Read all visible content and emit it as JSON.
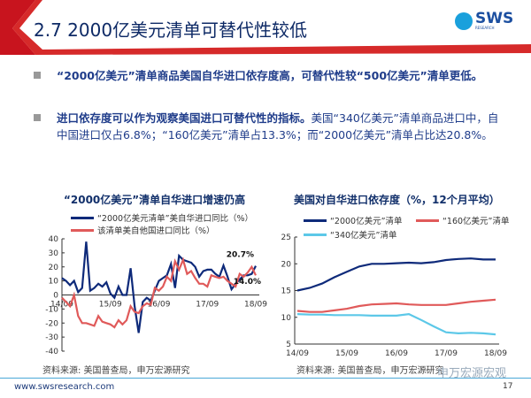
{
  "header": {
    "title": "2.7 2000亿美元清单可替代性较低",
    "logo_text": "SWS",
    "logo_sub": "RESEARCH"
  },
  "bullets": [
    {
      "bold": "“2000亿美元”清单商品美国自华进口依存度高，可替代性较“500亿美元”清单更低。",
      "normal": ""
    },
    {
      "bold": "进口依存度可以作为观察美国进口可替代性的指标。",
      "normal": "美国“340亿美元”清单商品进口中，自中国进口仅占6.8%；“160亿美元”清单占13.3%；而“2000亿美元”清单占比达20.8%。"
    }
  ],
  "footer": {
    "url": "www.swsresearch.com",
    "page": "17",
    "watermark": "申万宏源宏观"
  },
  "chart_data": [
    {
      "type": "line",
      "title": "“2000亿美元”清单自华进口增速仍高",
      "xlabel": "",
      "ylabel": "",
      "ylim": [
        -40,
        40
      ],
      "yticks": [
        "40",
        "30",
        "20",
        "10",
        "0",
        "-10",
        "-20",
        "-30",
        "-40"
      ],
      "xticks": [
        "14/09",
        "15/09",
        "16/09",
        "17/09",
        "18/09"
      ],
      "source": "资料来源: 美国普查局，申万宏源研究",
      "annotations": [
        "20.7%",
        "14.0%"
      ],
      "series": [
        {
          "name": "“2000亿美元清单”美自华进口同比（%）",
          "color": "#0e2a7a",
          "values": [
            12,
            10,
            7,
            10,
            2,
            5,
            38,
            3,
            5,
            8,
            6,
            9,
            1,
            -2,
            6,
            0,
            0,
            19,
            -8,
            -27,
            -5,
            -2,
            -4,
            3,
            10,
            12,
            14,
            22,
            5,
            28,
            25,
            24,
            23,
            20,
            13,
            17,
            18,
            18,
            15,
            13,
            21,
            13,
            4,
            8,
            11,
            14,
            14,
            15,
            20.7
          ]
        },
        {
          "name": "该清单美自他国进口同比（%）",
          "color": "#e05a5a",
          "values": [
            -2,
            -5,
            -8,
            0,
            -15,
            -20,
            -20,
            -21,
            -22,
            -15,
            -19,
            -20,
            -21,
            -23,
            -18,
            -21,
            -18,
            -8,
            -12,
            -13,
            -8,
            -6,
            -7,
            5,
            3,
            6,
            13,
            10,
            24,
            18,
            25,
            15,
            17,
            12,
            8,
            8,
            6,
            14,
            13,
            12,
            13,
            10,
            8,
            6,
            15,
            13,
            16,
            20,
            14
          ]
        }
      ]
    },
    {
      "type": "line",
      "title": "美国对自华进口依存度（%，12个月平均）",
      "xlabel": "",
      "ylabel": "",
      "ylim": [
        5,
        25
      ],
      "yticks": [
        "25",
        "20",
        "15",
        "10",
        "5"
      ],
      "xticks": [
        "14/09",
        "15/09",
        "16/09",
        "17/09",
        "18/09"
      ],
      "source": "资料来源: 美国普查局，申万宏源研究",
      "series": [
        {
          "name": "“2000亿美元”清单",
          "color": "#0e2a7a",
          "values": [
            15,
            15.5,
            16.3,
            17.5,
            18.5,
            19.5,
            20,
            20,
            20.1,
            20.2,
            20.1,
            20.3,
            20.7,
            20.9,
            21,
            20.8,
            20.8
          ]
        },
        {
          "name": "“160亿美元”清单",
          "color": "#e05a5a",
          "values": [
            11.2,
            11,
            11,
            11.3,
            11.6,
            12.1,
            12.4,
            12.5,
            12.6,
            12.4,
            12.3,
            12.3,
            12.3,
            12.6,
            12.9,
            13.1,
            13.3
          ]
        },
        {
          "name": "“340亿美元”清单",
          "color": "#5cc8e8",
          "values": [
            10.6,
            10.5,
            10.5,
            10.4,
            10.4,
            10.4,
            10.3,
            10.3,
            10.3,
            10.6,
            9.5,
            8.3,
            7.2,
            7.0,
            7.1,
            7.0,
            6.8
          ]
        }
      ]
    }
  ]
}
